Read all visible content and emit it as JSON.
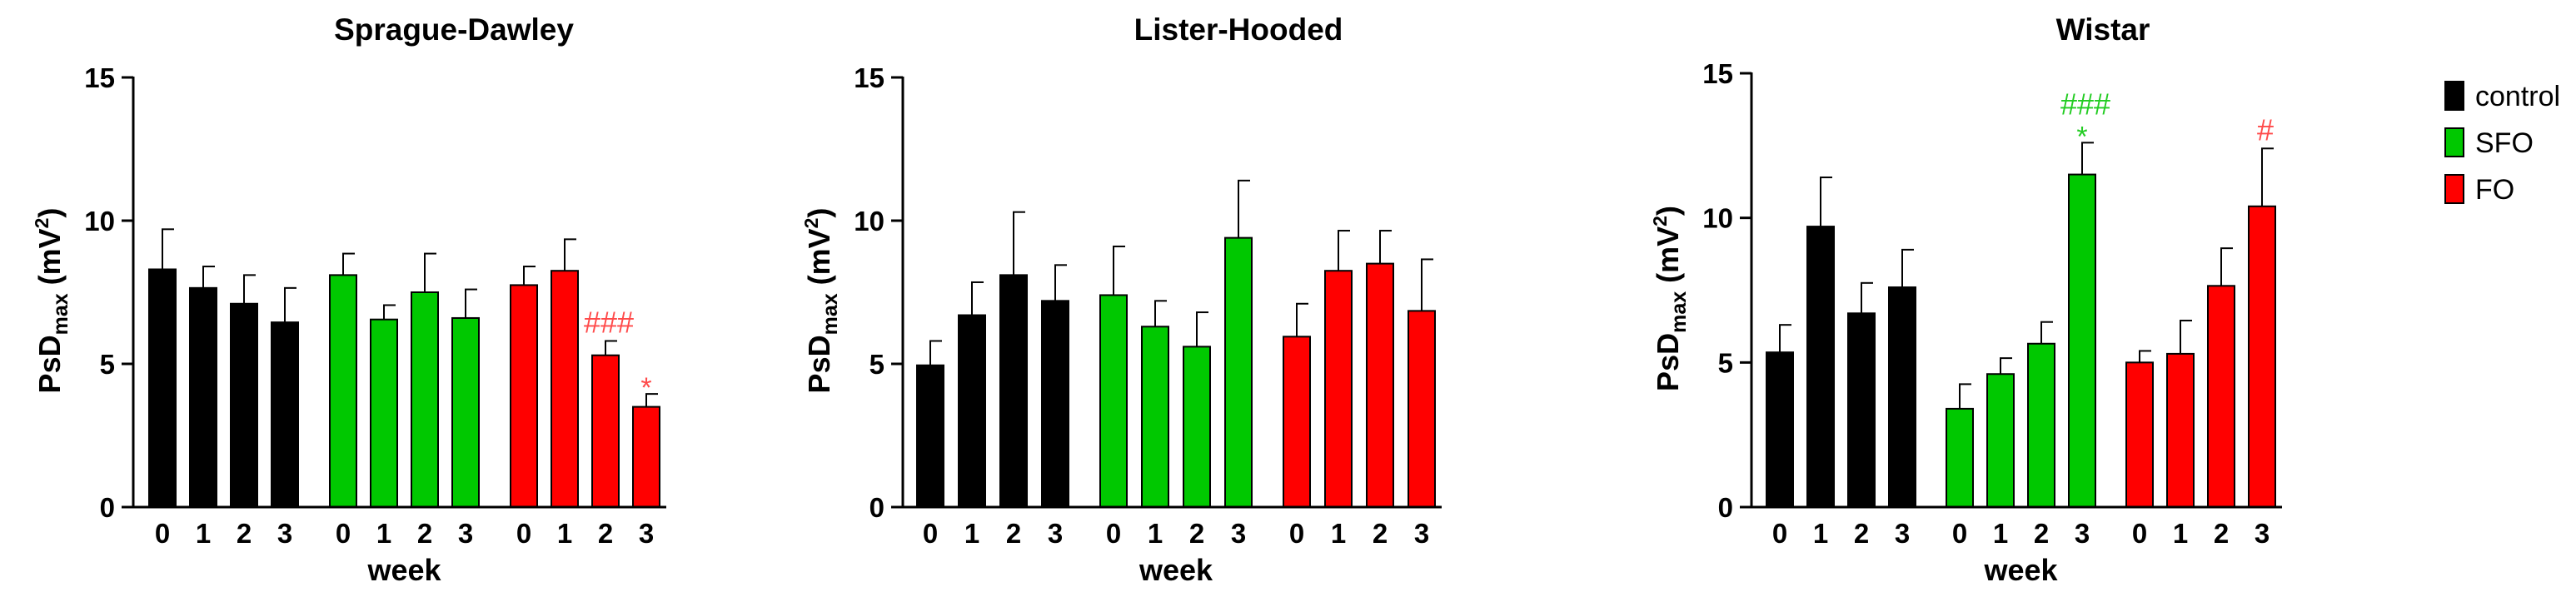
{
  "chart_data": [
    {
      "type": "bar",
      "title": "Sprague-Dawley",
      "xlabel": "week",
      "ylabel": "PsD",
      "ylabel_sub": "max",
      "ylabel_unit_open": " (mV",
      "ylabel_unit_sup": "2",
      "ylabel_unit_close": ")",
      "ylim": [
        0,
        15
      ],
      "yticks": [
        "0",
        "5",
        "10",
        "15"
      ],
      "categories": [
        "0",
        "1",
        "2",
        "3"
      ],
      "series": [
        {
          "name": "control",
          "values": [
            8.3,
            7.65,
            7.1,
            6.45
          ],
          "errors": [
            1.4,
            0.75,
            1.0,
            1.2
          ],
          "annotations": [
            "",
            "",
            "",
            ""
          ]
        },
        {
          "name": "SFO",
          "values": [
            8.1,
            6.55,
            7.5,
            6.6
          ],
          "errors": [
            0.75,
            0.5,
            1.35,
            1.0
          ],
          "annotations": [
            "",
            "",
            "",
            ""
          ]
        },
        {
          "name": "FO",
          "values": [
            7.75,
            8.25,
            5.3,
            3.5
          ],
          "errors": [
            0.65,
            1.1,
            0.5,
            0.45
          ],
          "annotations": [
            "",
            "",
            "###",
            "*"
          ]
        }
      ]
    },
    {
      "type": "bar",
      "title": "Lister-Hooded",
      "xlabel": "week",
      "ylabel": "PsD",
      "ylabel_sub": "max",
      "ylabel_unit_open": " (mV",
      "ylabel_unit_sup": "2",
      "ylabel_unit_close": ")",
      "ylim": [
        0,
        15
      ],
      "yticks": [
        "0",
        "5",
        "10",
        "15"
      ],
      "categories": [
        "0",
        "1",
        "2",
        "3"
      ],
      "series": [
        {
          "name": "control",
          "values": [
            4.95,
            6.7,
            8.1,
            7.2
          ],
          "errors": [
            0.85,
            1.15,
            2.2,
            1.25
          ],
          "annotations": [
            "",
            "",
            "",
            ""
          ]
        },
        {
          "name": "SFO",
          "values": [
            7.4,
            6.3,
            5.6,
            9.4
          ],
          "errors": [
            1.7,
            0.9,
            1.2,
            2.0
          ],
          "annotations": [
            "",
            "",
            "",
            ""
          ]
        },
        {
          "name": "FO",
          "values": [
            5.95,
            8.25,
            8.5,
            6.85
          ],
          "errors": [
            1.15,
            1.4,
            1.15,
            1.8
          ],
          "annotations": [
            "",
            "",
            "",
            ""
          ]
        }
      ]
    },
    {
      "type": "bar",
      "title": "Wistar",
      "xlabel": "week",
      "ylabel": "PsD",
      "ylabel_sub": "max",
      "ylabel_unit_open": " (mV",
      "ylabel_unit_sup": "2",
      "ylabel_unit_close": ")",
      "ylim": [
        0,
        15
      ],
      "yticks": [
        "0",
        "5",
        "10",
        "15"
      ],
      "categories": [
        "0",
        "1",
        "2",
        "3"
      ],
      "series": [
        {
          "name": "control",
          "values": [
            5.35,
            9.7,
            6.7,
            7.6
          ],
          "errors": [
            0.95,
            1.7,
            1.05,
            1.3
          ],
          "annotations": [
            "",
            "",
            "",
            ""
          ]
        },
        {
          "name": "SFO",
          "values": [
            3.4,
            4.6,
            5.65,
            11.5
          ],
          "errors": [
            0.85,
            0.55,
            0.75,
            1.1
          ],
          "annotations": [
            "",
            "",
            "",
            "###|*"
          ]
        },
        {
          "name": "FO",
          "values": [
            5.0,
            5.3,
            7.65,
            10.4
          ],
          "errors": [
            0.4,
            1.15,
            1.3,
            2.0
          ],
          "annotations": [
            "",
            "",
            "",
            "#"
          ]
        }
      ]
    }
  ],
  "legend": {
    "placement": "right",
    "items": [
      {
        "label": "control",
        "color": "#000000"
      },
      {
        "label": "SFO",
        "color": "#00c800"
      },
      {
        "label": "FO",
        "color": "#ff0000"
      }
    ]
  },
  "colors": {
    "control": "#000000",
    "SFO": "#00c800",
    "FO": "#ff0000"
  },
  "annotation_colors": {
    "SFO": "#22cc22",
    "FO": "#ff4a4a"
  }
}
